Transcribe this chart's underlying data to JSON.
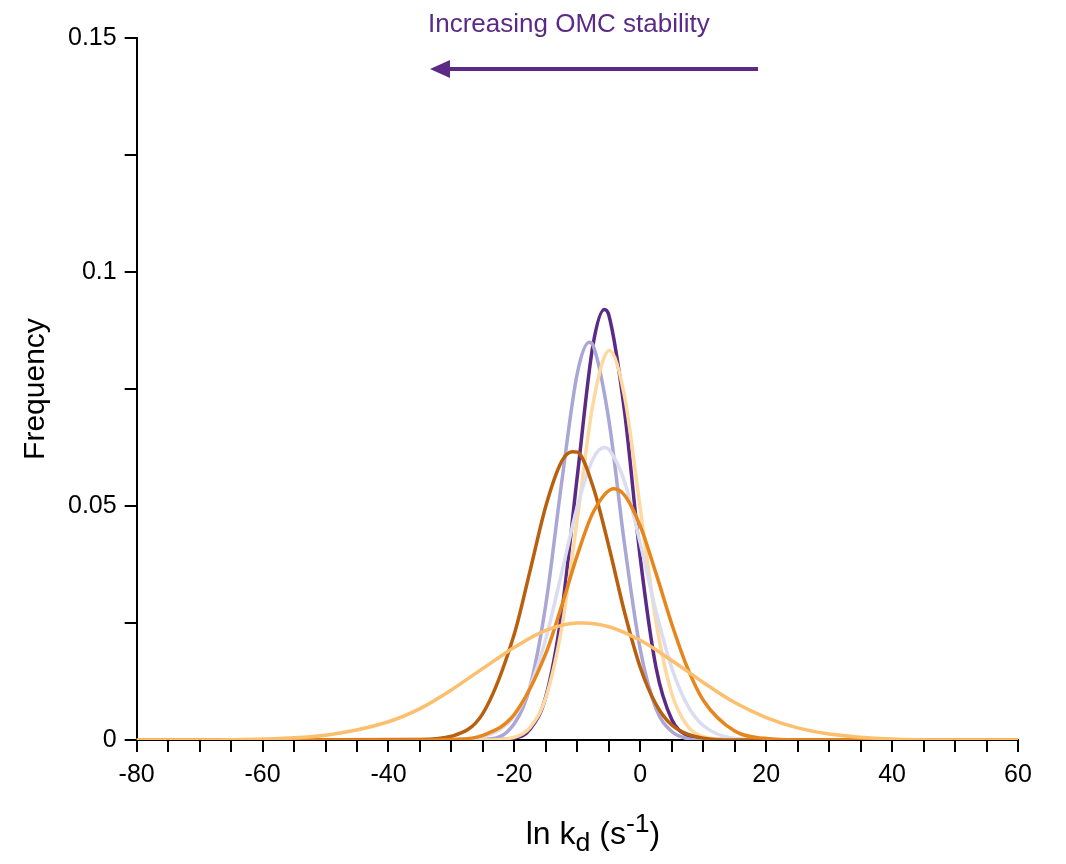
{
  "chart_data": {
    "type": "line",
    "xlabel": "ln k$_{d}$ (s$^{-1}$)",
    "ylabel": "Frequency",
    "annotations": [
      "Increasing OMC stability"
    ],
    "xlim": [
      -80,
      60
    ],
    "ylim": [
      0,
      0.15
    ],
    "xticks": [
      -80,
      {
        "value": -75,
        "label": null
      },
      {
        "value": -70,
        "label": null
      },
      {
        "value": -65,
        "label": null
      },
      -60,
      {
        "value": -55,
        "label": null
      },
      {
        "value": -50,
        "label": null
      },
      {
        "value": -45,
        "label": null
      },
      -40,
      {
        "value": -35,
        "label": null
      },
      {
        "value": -30,
        "label": null
      },
      {
        "value": -25,
        "label": null
      },
      -20,
      {
        "value": -15,
        "label": null
      },
      {
        "value": -10,
        "label": null
      },
      {
        "value": -5,
        "label": null
      },
      0,
      {
        "value": 5,
        "label": null
      },
      {
        "value": 10,
        "label": null
      },
      {
        "value": 15,
        "label": null
      },
      20,
      {
        "value": 25,
        "label": null
      },
      {
        "value": 30,
        "label": null
      },
      {
        "value": 35,
        "label": null
      },
      40,
      {
        "value": 45,
        "label": null
      },
      {
        "value": 50,
        "label": null
      },
      {
        "value": 55,
        "label": null
      },
      60
    ],
    "yticks": [
      0,
      {
        "value": 0.025,
        "label": null
      },
      0.05,
      {
        "value": 0.075,
        "label": null
      },
      0.1,
      {
        "value": 0.125,
        "label": null
      },
      0.15
    ],
    "grid": false,
    "legend": false,
    "marker": "none",
    "line_style": "solid",
    "series": [
      {
        "color": "#fbbf6e",
        "x": [
          -80,
          -70,
          -60,
          -50,
          -40,
          -35,
          -30,
          -25,
          -20,
          -15,
          -10,
          -9.1,
          -5,
          0,
          5,
          10,
          15,
          20,
          25,
          30,
          40,
          50,
          60
        ],
        "values": [
          0,
          0,
          0.0002,
          0.001,
          0.0039,
          0.0067,
          0.0107,
          0.0153,
          0.0198,
          0.0234,
          0.025,
          0.025,
          0.0242,
          0.0213,
          0.017,
          0.0123,
          0.008,
          0.0048,
          0.0026,
          0.0013,
          0.0002,
          0,
          0
        ]
      },
      {
        "color": "#e6861c",
        "x": [
          -80,
          -35,
          -30,
          -25,
          -20,
          -15,
          -12.5,
          -10,
          -7.5,
          -4.2,
          -2.5,
          0,
          2.5,
          5,
          7.5,
          10,
          15,
          20,
          25,
          60
        ],
        "values": [
          0,
          0,
          0.0001,
          0.001,
          0.0055,
          0.0185,
          0.0286,
          0.0395,
          0.0486,
          0.0537,
          0.0523,
          0.0457,
          0.0356,
          0.0248,
          0.0154,
          0.0085,
          0.0019,
          0.0003,
          0,
          0
        ]
      },
      {
        "color": "#b8600e",
        "x": [
          -80,
          -35,
          -30,
          -25,
          -20,
          -17.5,
          -15,
          -12.5,
          -10.8,
          -10,
          -7.5,
          -5,
          -2.5,
          0,
          2.5,
          5,
          10,
          15,
          60
        ],
        "values": [
          0,
          0.0001,
          0.0008,
          0.0057,
          0.0227,
          0.0362,
          0.05,
          0.0595,
          0.0616,
          0.0615,
          0.0541,
          0.0414,
          0.0273,
          0.0155,
          0.0076,
          0.0032,
          0.0004,
          0,
          0
        ]
      },
      {
        "color": "#dcdcf0",
        "x": [
          -80,
          -30,
          -25,
          -20,
          -17.5,
          -15,
          -12.5,
          -10,
          -7.5,
          -5.7,
          -5,
          -2.5,
          0,
          2.5,
          5,
          7.5,
          10,
          15,
          20,
          60
        ],
        "values": [
          0,
          0,
          0.0007,
          0.0051,
          0.0114,
          0.0217,
          0.0356,
          0.0499,
          0.0601,
          0.0625,
          0.0621,
          0.0552,
          0.042,
          0.0275,
          0.0154,
          0.0074,
          0.0031,
          0.0003,
          0,
          0
        ]
      },
      {
        "color": "#fdd9a0",
        "x": [
          -80,
          -25,
          -20,
          -17.5,
          -15,
          -12.5,
          -10,
          -7.5,
          -4.9,
          -2.5,
          0,
          2.5,
          5,
          7.5,
          10,
          15,
          60
        ],
        "values": [
          0,
          0,
          0.0006,
          0.0027,
          0.0091,
          0.0238,
          0.0473,
          0.0719,
          0.0832,
          0.0734,
          0.0494,
          0.0253,
          0.0099,
          0.003,
          0.0007,
          0,
          0
        ]
      },
      {
        "color": "#aaa7d6",
        "x": [
          -80,
          -25,
          -20,
          -17.5,
          -15,
          -12.5,
          -10,
          -8.1,
          -7.5,
          -5,
          -2.5,
          0,
          2.5,
          5,
          7.5,
          10,
          60
        ],
        "values": [
          0,
          0.0001,
          0.0035,
          0.0115,
          0.029,
          0.0549,
          0.0784,
          0.085,
          0.0843,
          0.0684,
          0.0418,
          0.0193,
          0.0067,
          0.0018,
          0.0003,
          0,
          0
        ]
      },
      {
        "color": "#5b2a86",
        "x": [
          -80,
          -25,
          -20,
          -17.5,
          -15,
          -12.5,
          -10,
          -7.5,
          -5.7,
          -5,
          -2.5,
          0,
          2.5,
          5,
          7.5,
          10,
          60
        ],
        "values": [
          0,
          0,
          0.0004,
          0.0023,
          0.0093,
          0.0271,
          0.0564,
          0.0845,
          0.092,
          0.0908,
          0.0702,
          0.0389,
          0.0155,
          0.0044,
          0.0009,
          0.0001,
          0
        ]
      }
    ]
  }
}
